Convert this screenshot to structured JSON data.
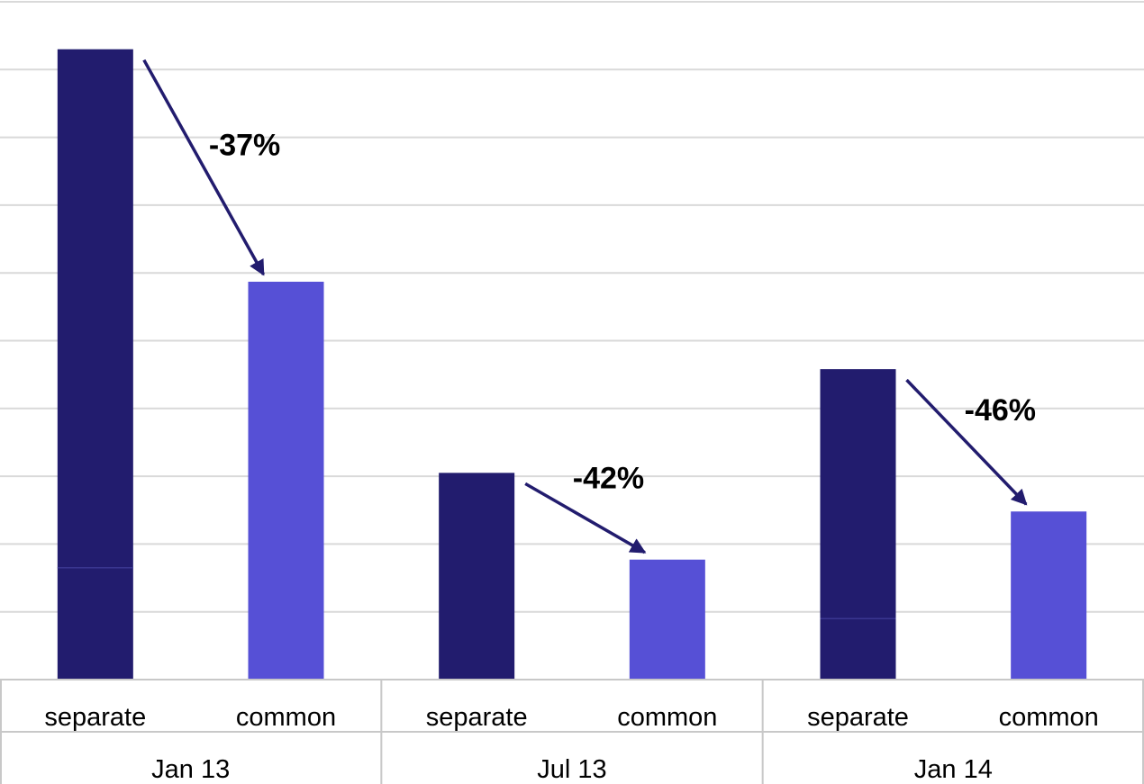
{
  "chart_data": {
    "type": "bar",
    "groups": [
      {
        "label": "Jan 13",
        "bars": [
          {
            "category": "separate",
            "value": 9.3,
            "inner_line": 1.65
          },
          {
            "category": "common",
            "value": 5.87
          }
        ],
        "annotation": "-37%"
      },
      {
        "label": "Jul 13",
        "bars": [
          {
            "category": "separate",
            "value": 3.05
          },
          {
            "category": "common",
            "value": 1.77
          }
        ],
        "annotation": "-42%"
      },
      {
        "label": "Jan 14",
        "bars": [
          {
            "category": "separate",
            "value": 4.58,
            "inner_line": 0.9
          },
          {
            "category": "common",
            "value": 2.48
          }
        ],
        "annotation": "-46%"
      }
    ],
    "ylim": [
      0,
      10
    ],
    "grid": true,
    "colors": {
      "separate": "#221c6e",
      "common": "#5650d6",
      "arrow": "#221c6e",
      "grid": "#d9d9d9",
      "inner_line": "#3a3690"
    }
  }
}
